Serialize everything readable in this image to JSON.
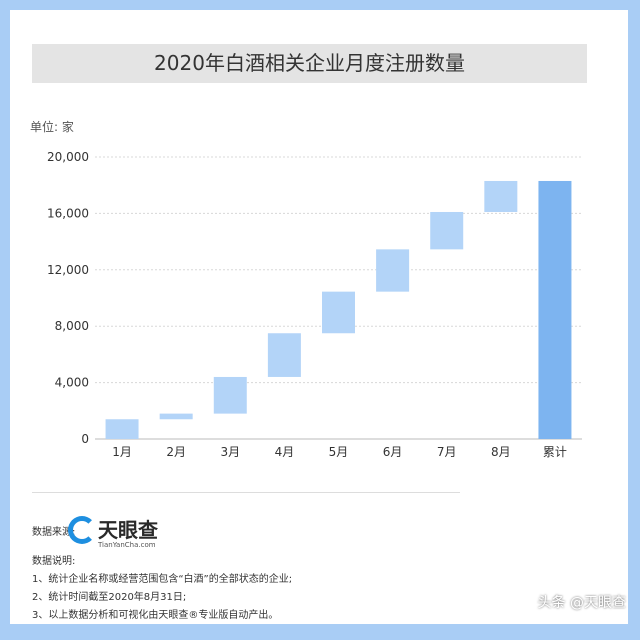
{
  "chart_data": {
    "type": "bar",
    "subtype": "waterfall",
    "title": "2020年白酒相关企业月度注册数量",
    "ylabel": "单位: 家",
    "categories": [
      "1月",
      "2月",
      "3月",
      "4月",
      "5月",
      "6月",
      "7月",
      "8月",
      "累计"
    ],
    "values": [
      1400,
      400,
      2600,
      3100,
      2950,
      3000,
      2650,
      2200,
      18300
    ],
    "ylim": [
      0,
      20000
    ],
    "yticks": [
      0,
      4000,
      8000,
      12000,
      16000,
      20000
    ],
    "ytick_labels": [
      "0",
      "4,000",
      "8,000",
      "12,000",
      "16,000",
      "20,000"
    ],
    "grid": true,
    "colors": {
      "step": "#b3d4f8",
      "total": "#7db4f0"
    }
  },
  "footer": {
    "source_label": "数据来源:",
    "logo_text": "天眼查",
    "logo_sub": "TianYanCha.com",
    "notes_label": "数据说明:",
    "notes": [
      "1、统计企业名称或经营范围包含“白酒”的全部状态的企业;",
      "2、统计时间截至2020年8月31日;",
      "3、以上数据分析和可视化由天眼查®专业版自动产出。"
    ],
    "watermark": "头条 @天眼查"
  }
}
